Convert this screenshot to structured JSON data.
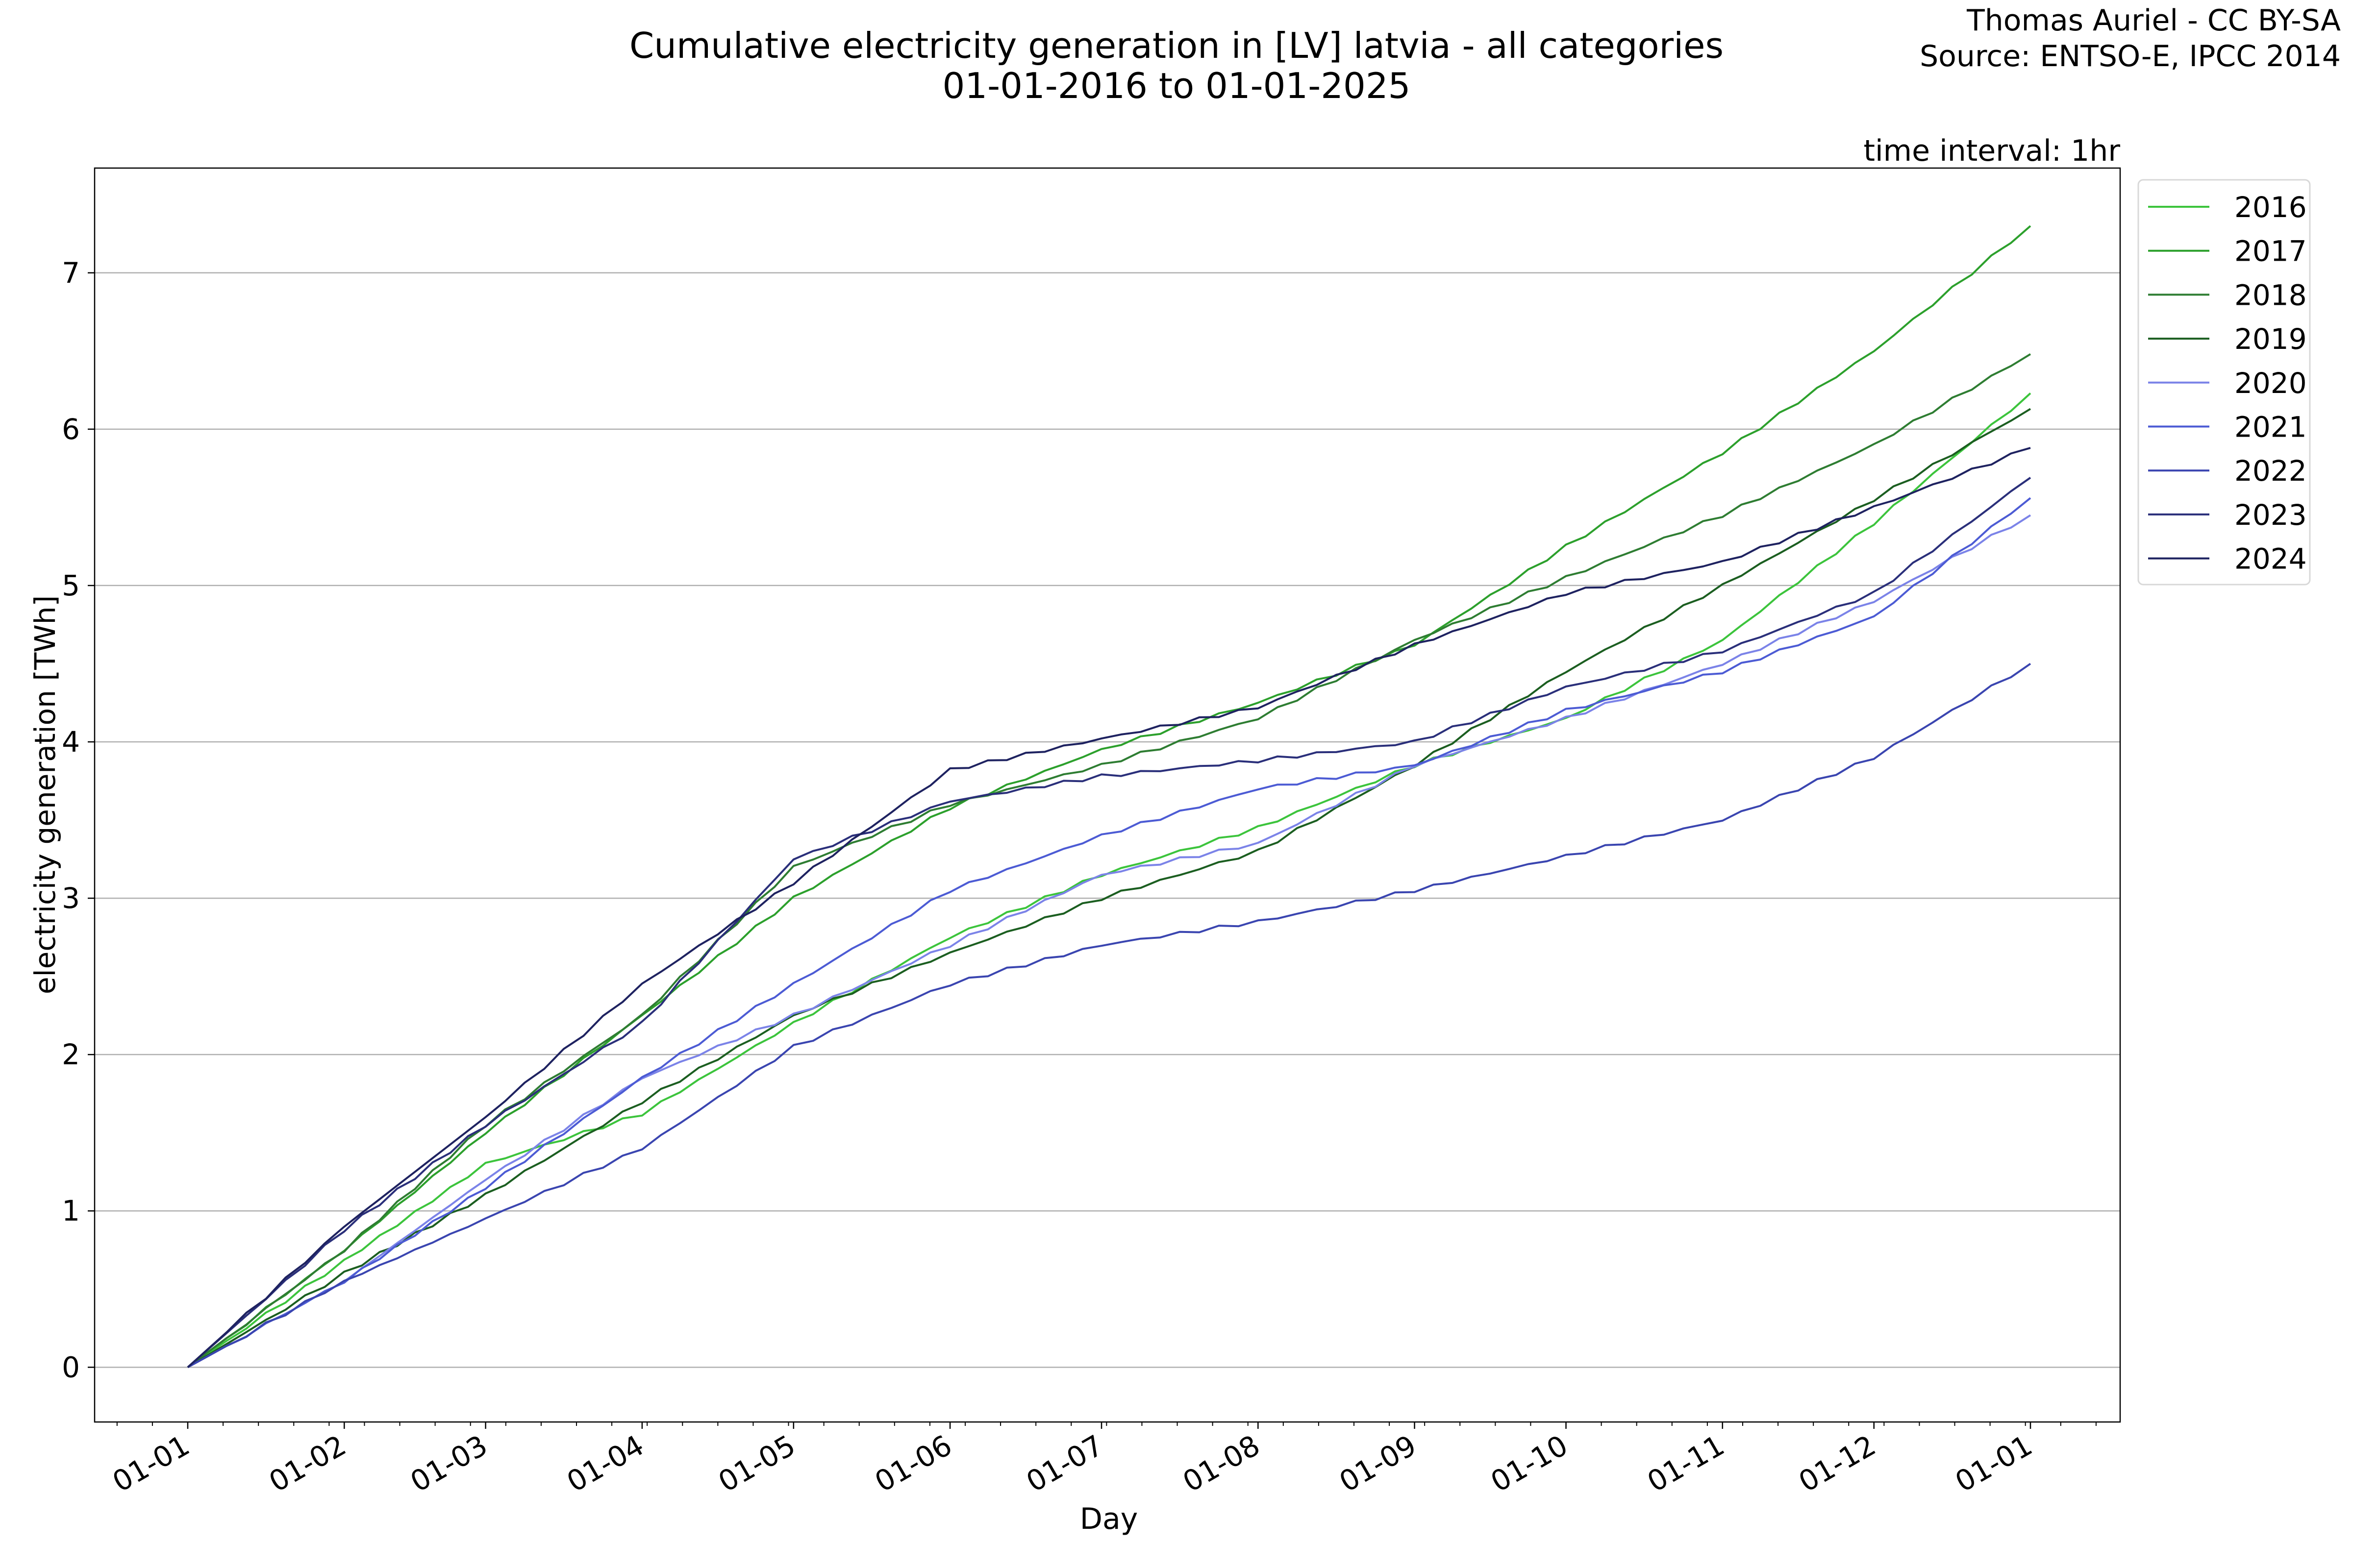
{
  "chart_data": {
    "type": "line",
    "title": "Cumulative electricity generation in [LV] latvia - all categories",
    "subtitle": "01-01-2016 to 01-01-2025",
    "attribution": [
      "Thomas Auriel - CC BY-SA",
      "Source: ENTSO-E, IPCC 2014"
    ],
    "annotation": "time interval: 1hr",
    "xlabel": "Day",
    "ylabel": "electricity generation [TWh]",
    "x": [
      "01-01",
      "01-02",
      "01-03",
      "01-04",
      "01-05",
      "01-06",
      "01-07",
      "01-08",
      "01-09",
      "01-10",
      "01-11",
      "01-12",
      "01-01"
    ],
    "x_tick_labels": [
      "01-01",
      "01-02",
      "01-03",
      "01-04",
      "01-05",
      "01-06",
      "01-07",
      "01-08",
      "01-09",
      "01-10",
      "01-11",
      "01-12",
      "01-01"
    ],
    "y_ticks": [
      0,
      1,
      2,
      3,
      4,
      5,
      6,
      7
    ],
    "ylim": [
      -0.35,
      7.67
    ],
    "grid": "horizontal",
    "legend_position": "outside-top-right",
    "series": [
      {
        "name": "2016",
        "color": "#3cc43c",
        "values": [
          0,
          0.68,
          1.3,
          1.62,
          2.2,
          2.75,
          3.15,
          3.45,
          3.85,
          4.15,
          4.65,
          5.4,
          6.23
        ]
      },
      {
        "name": "2017",
        "color": "#2ca02c",
        "values": [
          0,
          0.75,
          1.5,
          2.25,
          3.0,
          3.58,
          3.95,
          4.25,
          4.62,
          5.25,
          5.85,
          6.5,
          7.3
        ]
      },
      {
        "name": "2018",
        "color": "#2e7d32",
        "values": [
          0,
          0.75,
          1.55,
          2.25,
          3.2,
          3.6,
          3.85,
          4.15,
          4.65,
          5.05,
          5.45,
          5.9,
          6.48
        ]
      },
      {
        "name": "2019",
        "color": "#1b5e20",
        "values": [
          0,
          0.6,
          1.1,
          1.7,
          2.25,
          2.65,
          3.0,
          3.3,
          3.85,
          4.45,
          5.0,
          5.55,
          6.13
        ]
      },
      {
        "name": "2020",
        "color": "#7b83e8",
        "values": [
          0,
          0.55,
          1.2,
          1.85,
          2.25,
          2.7,
          3.15,
          3.35,
          3.85,
          4.15,
          4.5,
          4.9,
          5.45
        ]
      },
      {
        "name": "2021",
        "color": "#4c5bd4",
        "values": [
          0,
          0.55,
          1.15,
          1.85,
          2.45,
          3.05,
          3.4,
          3.7,
          3.85,
          4.2,
          4.45,
          4.8,
          5.56
        ]
      },
      {
        "name": "2022",
        "color": "#3a45b0",
        "values": [
          0,
          0.55,
          0.95,
          1.4,
          2.05,
          2.45,
          2.7,
          2.85,
          3.05,
          3.27,
          3.5,
          3.9,
          4.5
        ]
      },
      {
        "name": "2023",
        "color": "#2a2f7a",
        "values": [
          0,
          0.88,
          1.55,
          2.2,
          3.25,
          3.62,
          3.78,
          3.88,
          4.0,
          4.35,
          4.58,
          4.95,
          5.69
        ]
      },
      {
        "name": "2024",
        "color": "#1e2260",
        "values": [
          0,
          0.9,
          1.6,
          2.45,
          3.1,
          3.82,
          4.02,
          4.22,
          4.62,
          4.95,
          5.15,
          5.5,
          5.88
        ]
      }
    ]
  }
}
